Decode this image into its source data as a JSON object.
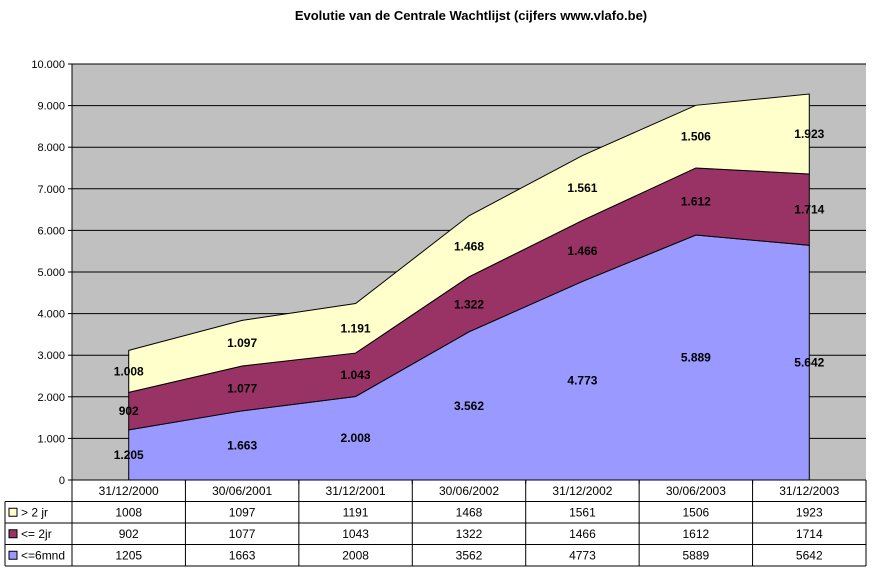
{
  "chart_data": {
    "type": "area",
    "stacked": true,
    "title": "Evolutie van de Centrale Wachtlijst (cijfers www.vlafo.be)",
    "categories": [
      "31/12/2000",
      "30/06/2001",
      "31/12/2001",
      "30/06/2002",
      "31/12/2002",
      "30/06/2003",
      "31/12/2003"
    ],
    "ylim": [
      0,
      10000
    ],
    "yticks": [
      "0",
      "1.000",
      "2.000",
      "3.000",
      "4.000",
      "5.000",
      "6.000",
      "7.000",
      "8.000",
      "9.000",
      "10.000"
    ],
    "grid": true,
    "legend": "data-table",
    "series": [
      {
        "name": "<=6mnd",
        "values": [
          1205,
          1663,
          2008,
          3562,
          4773,
          5889,
          5642
        ],
        "labels": [
          "1.205",
          "1.663",
          "2.008",
          "3.562",
          "4.773",
          "5.889",
          "5.642"
        ],
        "table": [
          "1205",
          "1663",
          "2008",
          "3562",
          "4773",
          "5889",
          "5642"
        ],
        "color": "#9999ff"
      },
      {
        "name": "<= 2jr",
        "values": [
          902,
          1077,
          1043,
          1322,
          1466,
          1612,
          1714
        ],
        "labels": [
          "902",
          "1.077",
          "1.043",
          "1.322",
          "1.466",
          "1.612",
          "1.714"
        ],
        "table": [
          "902",
          "1077",
          "1043",
          "1322",
          "1466",
          "1612",
          "1714"
        ],
        "color": "#993366"
      },
      {
        "name": "> 2 jr",
        "values": [
          1008,
          1097,
          1191,
          1468,
          1561,
          1506,
          1923
        ],
        "labels": [
          "1.008",
          "1.097",
          "1.191",
          "1.468",
          "1.561",
          "1.506",
          "1.923"
        ],
        "table": [
          "1008",
          "1097",
          "1191",
          "1468",
          "1561",
          "1506",
          "1923"
        ],
        "color": "#ffffcc"
      }
    ],
    "table_row_order": [
      "> 2 jr",
      "<= 2jr",
      "<=6mnd"
    ],
    "plot_background": "#c0c0c0"
  }
}
